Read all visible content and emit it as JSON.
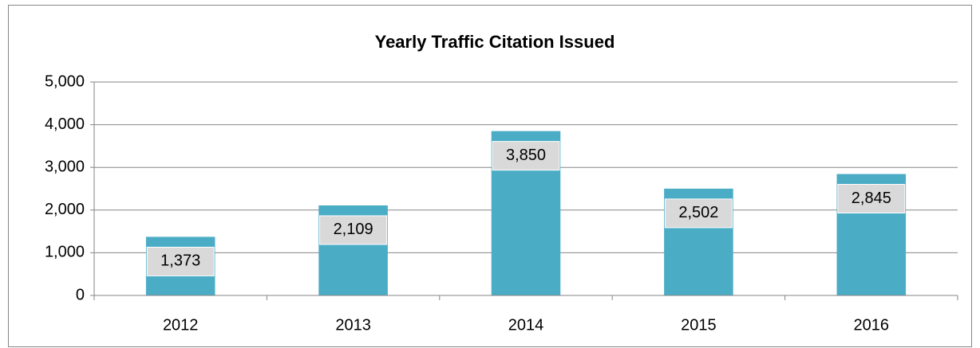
{
  "chart_data": {
    "type": "bar",
    "title": "Yearly Traffic Citation Issued",
    "categories": [
      "2012",
      "2013",
      "2014",
      "2015",
      "2016"
    ],
    "values": [
      1373,
      2109,
      3850,
      2502,
      2845
    ],
    "value_labels": [
      "1,373",
      "2,109",
      "3,850",
      "2,502",
      "2,845"
    ],
    "color": "#4bacc6",
    "ylim": [
      0,
      5000
    ],
    "yticks": [
      0,
      {
        "value": 1000,
        "label": "1,000"
      },
      {
        "value": 2000,
        "label": "2,000"
      },
      {
        "value": 3000,
        "label": "3,000"
      },
      {
        "value": 4000,
        "label": "4,000"
      },
      {
        "value": 5000,
        "label": "5,000"
      }
    ],
    "grid": true
  }
}
